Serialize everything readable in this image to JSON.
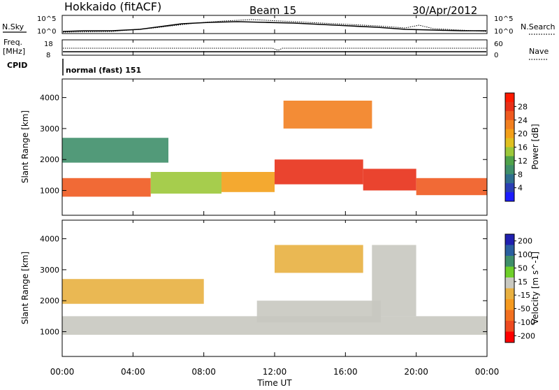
{
  "header": {
    "station": "Hokkaido (fitACF)",
    "beam": "Beam 15",
    "date": "30/Apr/2012"
  },
  "summary": {
    "nsky_label": "N.Sky",
    "nsearch_label": "N.Search",
    "count_ticks": [
      "10^5",
      "10^0"
    ],
    "freq_label_line1": "Freq.",
    "freq_label_line2": "[MHz]",
    "freq_ticks": [
      "18",
      "8"
    ],
    "nave_label": "Nave",
    "nave_ticks": [
      "60",
      "0"
    ],
    "cpid_label": "CPID",
    "cpid_value": "normal (fast) 151"
  },
  "colors": {
    "power": [
      "#1c1cff",
      "#2b3fb5",
      "#2f6e8e",
      "#3f8f6a",
      "#4fa24a",
      "#9cc83a",
      "#e0c020",
      "#f3a01a",
      "#f28020",
      "#ef5a20",
      "#e83018",
      "#ff1a00"
    ],
    "velocity": [
      "#2020b0",
      "#2a5fa0",
      "#3f8f6a",
      "#6fcf2a",
      "#c8c8c0",
      "#e8b040",
      "#f59a20",
      "#f27020",
      "#ee4a20",
      "#ff0000"
    ]
  },
  "chart_data": [
    {
      "type": "heatmap",
      "panel": "power",
      "xlabel": "Time UT",
      "ylabel": "Slant Range [km]",
      "x_ticks": [
        "00:00",
        "04:00",
        "08:00",
        "12:00",
        "16:00",
        "20:00",
        "00:00"
      ],
      "x_range_hours": [
        0,
        24
      ],
      "y_ticks": [
        1000,
        2000,
        3000,
        4000
      ],
      "y_range": [
        200,
        4600
      ],
      "colorbar_label": "Power [dB]",
      "colorbar_ticks": [
        "4",
        "8",
        "12",
        "16",
        "20",
        "24",
        "28"
      ],
      "colorbar_range": [
        0,
        32
      ],
      "regions": [
        {
          "t0": 0,
          "t1": 5,
          "r0": 800,
          "r1": 1400,
          "value": 26
        },
        {
          "t0": 5,
          "t1": 9,
          "r0": 900,
          "r1": 1600,
          "value": 15
        },
        {
          "t0": 9,
          "t1": 12,
          "r0": 950,
          "r1": 1600,
          "value": 20
        },
        {
          "t0": 12,
          "t1": 17,
          "r0": 1200,
          "r1": 2000,
          "value": 27
        },
        {
          "t0": 17,
          "t1": 20,
          "r0": 1000,
          "r1": 1700,
          "value": 27
        },
        {
          "t0": 20,
          "t1": 24,
          "r0": 850,
          "r1": 1400,
          "value": 26
        },
        {
          "t0": 12.5,
          "t1": 17.5,
          "r0": 3000,
          "r1": 3900,
          "value": 22
        },
        {
          "t0": 0,
          "t1": 6,
          "r0": 1900,
          "r1": 2700,
          "value": 9
        }
      ]
    },
    {
      "type": "heatmap",
      "panel": "velocity",
      "xlabel": "Time UT",
      "ylabel": "Slant Range [km]",
      "x_ticks": [
        "00:00",
        "04:00",
        "08:00",
        "12:00",
        "16:00",
        "20:00",
        "00:00"
      ],
      "x_range_hours": [
        0,
        24
      ],
      "y_ticks": [
        1000,
        2000,
        3000,
        4000
      ],
      "y_range": [
        200,
        4600
      ],
      "colorbar_label": "Velocity [m s^-1]",
      "colorbar_ticks": [
        "200",
        "100",
        "50",
        "15",
        "-15",
        "-50",
        "-100",
        "-200"
      ],
      "colorbar_range": [
        -250,
        250
      ],
      "regions": [
        {
          "t0": 0,
          "t1": 24,
          "r0": 900,
          "r1": 1500,
          "value": 0
        },
        {
          "t0": 11,
          "t1": 18,
          "r0": 1300,
          "r1": 2000,
          "value": 0
        },
        {
          "t0": 0,
          "t1": 8,
          "r0": 1900,
          "r1": 2700,
          "value": -30
        },
        {
          "t0": 17.5,
          "t1": 20,
          "r0": 1500,
          "r1": 3800,
          "value": 30
        },
        {
          "t0": 12,
          "t1": 17,
          "r0": 2900,
          "r1": 3800,
          "value": -10
        }
      ]
    }
  ]
}
